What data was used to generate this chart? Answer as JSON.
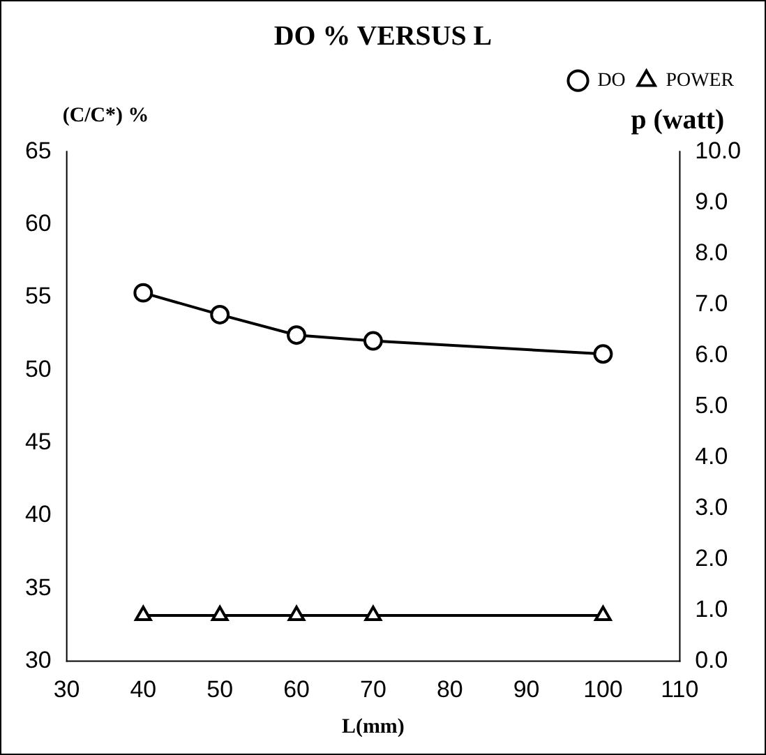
{
  "chart_data": {
    "type": "line",
    "title": "DO % VERSUS L",
    "xlabel": "L(mm)",
    "ylabel": "(C/C*) %",
    "y2label": "p (watt)",
    "x": [
      40,
      50,
      60,
      70,
      100
    ],
    "series": [
      {
        "name": "DO",
        "color": "#000000",
        "values": [
          55.3,
          53.8,
          52.4,
          52.0,
          51.1
        ],
        "marker": "circle"
      },
      {
        "name": "POWER",
        "color": "#000000",
        "values": [
          0.9,
          0.9,
          0.9,
          0.9,
          0.9
        ],
        "marker": "triangle",
        "axis": "y2"
      }
    ],
    "xlim": [
      30,
      110
    ],
    "xticks": [
      30,
      40,
      50,
      60,
      70,
      80,
      90,
      100,
      110
    ],
    "ylim": [
      30,
      65
    ],
    "yticks": [
      30,
      35,
      40,
      45,
      50,
      55,
      60,
      65
    ],
    "y2lim": [
      0,
      10
    ],
    "y2ticks": [
      {
        "value": 0,
        "label": "0.0"
      },
      {
        "value": 1,
        "label": "1.0"
      },
      {
        "value": 2,
        "label": "2.0"
      },
      {
        "value": 3,
        "label": "3.0"
      },
      {
        "value": 4,
        "label": "4.0"
      },
      {
        "value": 5,
        "label": "5.0"
      },
      {
        "value": 6,
        "label": "6.0"
      },
      {
        "value": 7,
        "label": "7.0"
      },
      {
        "value": 8,
        "label": "8.0"
      },
      {
        "value": 9,
        "label": "9.0"
      },
      {
        "value": 10,
        "label": "10.0"
      }
    ],
    "grid": false,
    "legend": "top right",
    "line_style": "solid"
  }
}
